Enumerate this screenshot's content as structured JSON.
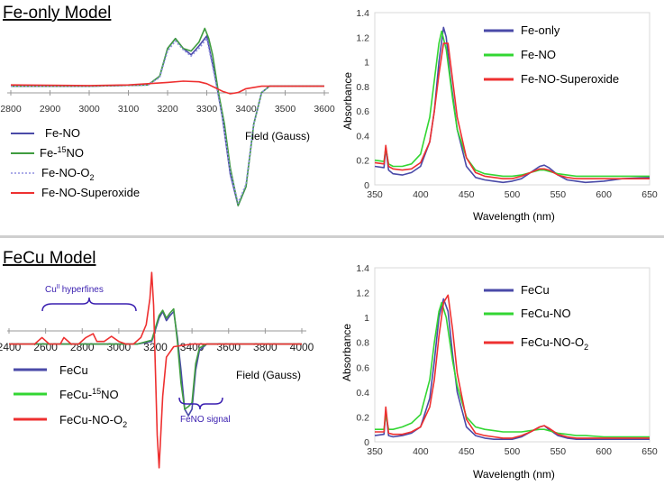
{
  "sections": {
    "top": {
      "title": "Fe-only Model"
    },
    "bottom": {
      "title": "FeCu Model"
    }
  },
  "colors": {
    "blue": "#4a4aa8",
    "green": "#3f9c3f",
    "bright_green": "#33d633",
    "red": "#ee3030",
    "dotted": "#8f8fe0",
    "annotation": "#3a1fb0"
  },
  "chart_data": [
    {
      "id": "epr_fe",
      "type": "line",
      "title": "",
      "xlabel": "Field (Gauss)",
      "ylabel": "",
      "xlim": [
        2800,
        3600
      ],
      "ylim": [
        -1.0,
        0.6
      ],
      "xticks": [
        2800,
        2900,
        3000,
        3100,
        3200,
        3300,
        3400,
        3500,
        3600
      ],
      "legend": [
        "Fe-NO",
        "Fe-",
        "15",
        "NO",
        "Fe-NO-O",
        "2",
        "Fe-NO-Superoxide"
      ],
      "series": [
        {
          "name": "Fe-NO",
          "color": "#4a4aa8",
          "style": "solid",
          "x": [
            2800,
            3000,
            3150,
            3180,
            3200,
            3220,
            3240,
            3260,
            3280,
            3300,
            3320,
            3340,
            3360,
            3380,
            3400,
            3420,
            3440,
            3460,
            3500,
            3600
          ],
          "y": [
            0,
            0,
            0.01,
            0.08,
            0.3,
            0.38,
            0.3,
            0.25,
            0.32,
            0.4,
            0.1,
            -0.25,
            -0.7,
            -0.95,
            -0.8,
            -0.3,
            -0.05,
            0,
            0,
            0
          ]
        },
        {
          "name": "Fe-15NO",
          "color": "#3f9c3f",
          "style": "solid",
          "x": [
            2800,
            3000,
            3150,
            3180,
            3200,
            3220,
            3240,
            3260,
            3280,
            3295,
            3305,
            3315,
            3330,
            3345,
            3360,
            3380,
            3400,
            3420,
            3440,
            3460,
            3500,
            3600
          ],
          "y": [
            0,
            0,
            0.01,
            0.08,
            0.3,
            0.38,
            0.3,
            0.28,
            0.35,
            0.46,
            0.38,
            0.25,
            -0.05,
            -0.3,
            -0.65,
            -0.95,
            -0.8,
            -0.3,
            -0.05,
            0,
            0,
            0
          ]
        },
        {
          "name": "Fe-NO-O2",
          "color": "#8f8fe0",
          "style": "dotted",
          "x": [
            2800,
            3000,
            3150,
            3180,
            3200,
            3220,
            3240,
            3260,
            3280,
            3300,
            3320,
            3340,
            3360,
            3380,
            3400,
            3420,
            3440,
            3460,
            3500,
            3600
          ],
          "y": [
            0,
            0,
            0.01,
            0.07,
            0.28,
            0.36,
            0.29,
            0.24,
            0.3,
            0.38,
            0.08,
            -0.25,
            -0.68,
            -0.93,
            -0.78,
            -0.3,
            -0.05,
            0,
            0,
            0
          ]
        },
        {
          "name": "Fe-NO-Superoxide",
          "color": "#ee3030",
          "style": "solid",
          "x": [
            2800,
            3000,
            3100,
            3150,
            3200,
            3240,
            3280,
            3300,
            3320,
            3340,
            3360,
            3380,
            3400,
            3440,
            3500,
            3600
          ],
          "y": [
            0.01,
            0.005,
            0.01,
            0.02,
            0.03,
            0.04,
            0.035,
            0.02,
            -0.01,
            -0.04,
            -0.06,
            -0.05,
            -0.02,
            0,
            0,
            0
          ]
        }
      ]
    },
    {
      "id": "uv_fe",
      "type": "line",
      "title": "",
      "xlabel": "Wavelength (nm)",
      "ylabel": "Absorbance",
      "xlim": [
        350,
        650
      ],
      "ylim": [
        0,
        1.4
      ],
      "xticks": [
        350,
        400,
        450,
        500,
        550,
        600,
        650
      ],
      "yticks": [
        "0",
        "0.2",
        "0.4",
        "0.6",
        "0.8",
        "1",
        "1.2",
        "1.4"
      ],
      "legend": [
        "Fe-only",
        "Fe-NO",
        "Fe-NO-Superoxide"
      ],
      "series": [
        {
          "name": "Fe-only",
          "color": "#4a4aa8",
          "x": [
            350,
            360,
            362,
            365,
            370,
            380,
            390,
            400,
            410,
            415,
            420,
            425,
            428,
            432,
            440,
            450,
            460,
            470,
            480,
            490,
            500,
            510,
            520,
            530,
            535,
            540,
            550,
            560,
            570,
            580,
            600,
            620,
            650
          ],
          "y": [
            0.15,
            0.14,
            0.3,
            0.12,
            0.09,
            0.08,
            0.1,
            0.15,
            0.35,
            0.6,
            1.0,
            1.28,
            1.2,
            0.9,
            0.45,
            0.15,
            0.06,
            0.04,
            0.03,
            0.02,
            0.03,
            0.05,
            0.1,
            0.15,
            0.16,
            0.14,
            0.08,
            0.04,
            0.03,
            0.02,
            0.03,
            0.05,
            0.06
          ]
        },
        {
          "name": "Fe-NO",
          "color": "#33d633",
          "x": [
            350,
            360,
            362,
            365,
            370,
            380,
            390,
            400,
            410,
            415,
            420,
            423,
            428,
            435,
            440,
            450,
            460,
            470,
            480,
            490,
            500,
            510,
            520,
            530,
            535,
            540,
            550,
            560,
            570,
            580,
            600,
            620,
            650
          ],
          "y": [
            0.2,
            0.19,
            0.3,
            0.17,
            0.15,
            0.15,
            0.17,
            0.25,
            0.55,
            0.85,
            1.15,
            1.25,
            1.1,
            0.7,
            0.45,
            0.22,
            0.12,
            0.09,
            0.08,
            0.07,
            0.07,
            0.08,
            0.1,
            0.12,
            0.12,
            0.11,
            0.09,
            0.08,
            0.07,
            0.07,
            0.07,
            0.07,
            0.07
          ]
        },
        {
          "name": "Fe-NO-Superoxide",
          "color": "#ee3030",
          "x": [
            350,
            360,
            362,
            365,
            370,
            380,
            390,
            400,
            410,
            415,
            420,
            425,
            430,
            435,
            440,
            450,
            460,
            470,
            480,
            490,
            500,
            510,
            520,
            530,
            535,
            540,
            550,
            560,
            570,
            580,
            600,
            620,
            650
          ],
          "y": [
            0.18,
            0.17,
            0.32,
            0.15,
            0.13,
            0.12,
            0.13,
            0.18,
            0.35,
            0.6,
            0.9,
            1.15,
            1.15,
            0.85,
            0.55,
            0.22,
            0.1,
            0.07,
            0.06,
            0.05,
            0.05,
            0.07,
            0.1,
            0.13,
            0.13,
            0.12,
            0.08,
            0.06,
            0.05,
            0.05,
            0.05,
            0.05,
            0.05
          ]
        }
      ]
    },
    {
      "id": "epr_fecu",
      "type": "line",
      "title": "",
      "xlabel": "Field (Gauss)",
      "ylabel": "",
      "xlim": [
        2400,
        4000
      ],
      "ylim": [
        -1.0,
        0.6
      ],
      "xticks": [
        2400,
        2600,
        2800,
        3000,
        3200,
        3400,
        3600,
        3800,
        4000
      ],
      "legend": [
        "FeCu",
        "FeCu-",
        "15",
        "NO",
        "FeCu-NO-O",
        "2"
      ],
      "annotations": [
        "Cu",
        "II",
        "hyperfines",
        "FeNO signal"
      ],
      "series": [
        {
          "name": "FeCu",
          "color": "#4a4aa8",
          "x": [
            2400,
            3100,
            3180,
            3220,
            3240,
            3260,
            3280,
            3300,
            3320,
            3340,
            3360,
            3380,
            3400,
            3420,
            3440,
            3480,
            3600,
            4000
          ],
          "y": [
            0,
            0,
            0.02,
            0.2,
            0.25,
            0.18,
            0.22,
            0.25,
            0.05,
            -0.2,
            -0.5,
            -0.55,
            -0.5,
            -0.2,
            -0.05,
            0,
            0,
            0
          ]
        },
        {
          "name": "FeCu-15NO",
          "color": "#3f9c3f",
          "x": [
            2400,
            3100,
            3180,
            3220,
            3240,
            3260,
            3280,
            3300,
            3320,
            3340,
            3360,
            3380,
            3400,
            3420,
            3440,
            3480,
            3600,
            4000
          ],
          "y": [
            0,
            0,
            0.03,
            0.22,
            0.26,
            0.2,
            0.24,
            0.27,
            0.02,
            -0.3,
            -0.5,
            -0.48,
            -0.45,
            -0.15,
            -0.03,
            0,
            0,
            0
          ]
        },
        {
          "name": "FeCu-NO-O2",
          "color": "#ee3030",
          "x": [
            2400,
            2540,
            2580,
            2620,
            2680,
            2700,
            2740,
            2780,
            2820,
            2860,
            2880,
            2920,
            2960,
            3000,
            3040,
            3080,
            3120,
            3150,
            3170,
            3180,
            3190,
            3200,
            3210,
            3220,
            3240,
            3260,
            3300,
            3400,
            3600,
            4000
          ],
          "y": [
            0,
            0,
            0.05,
            0,
            0,
            0.05,
            0,
            0,
            0.05,
            0.08,
            0.02,
            0.02,
            0.06,
            0.02,
            0,
            0,
            0.05,
            0.15,
            0.35,
            0.55,
            0.3,
            -0.2,
            -0.7,
            -0.95,
            -0.4,
            -0.1,
            -0.02,
            0,
            0,
            0
          ]
        }
      ]
    },
    {
      "id": "uv_fecu",
      "type": "line",
      "title": "",
      "xlabel": "Wavelength (nm)",
      "ylabel": "Absorbance",
      "xlim": [
        350,
        650
      ],
      "ylim": [
        0,
        1.4
      ],
      "xticks": [
        350,
        400,
        450,
        500,
        550,
        600,
        650
      ],
      "yticks": [
        "0",
        "0.2",
        "0.4",
        "0.6",
        "0.8",
        "1",
        "1.2",
        "1.4"
      ],
      "legend": [
        "FeCu",
        "FeCu-NO",
        "FeCu-NO-O",
        "2"
      ],
      "series": [
        {
          "name": "FeCu",
          "color": "#4a4aa8",
          "x": [
            350,
            360,
            362,
            365,
            370,
            380,
            390,
            400,
            410,
            415,
            420,
            425,
            430,
            435,
            440,
            450,
            460,
            470,
            480,
            490,
            500,
            510,
            520,
            530,
            535,
            540,
            550,
            560,
            570,
            580,
            600,
            620,
            650
          ],
          "y": [
            0.05,
            0.06,
            0.25,
            0.05,
            0.04,
            0.05,
            0.07,
            0.12,
            0.35,
            0.65,
            1.0,
            1.15,
            1.05,
            0.7,
            0.4,
            0.12,
            0.05,
            0.03,
            0.02,
            0.02,
            0.02,
            0.04,
            0.08,
            0.12,
            0.13,
            0.1,
            0.05,
            0.03,
            0.02,
            0.02,
            0.02,
            0.02,
            0.02
          ]
        },
        {
          "name": "FeCu-NO",
          "color": "#33d633",
          "x": [
            350,
            360,
            362,
            365,
            370,
            380,
            390,
            400,
            410,
            415,
            420,
            423,
            428,
            435,
            440,
            450,
            460,
            470,
            480,
            490,
            500,
            510,
            520,
            530,
            535,
            540,
            550,
            560,
            570,
            580,
            600,
            620,
            650
          ],
          "y": [
            0.1,
            0.1,
            0.22,
            0.1,
            0.1,
            0.12,
            0.15,
            0.22,
            0.5,
            0.8,
            1.05,
            1.12,
            1.0,
            0.65,
            0.45,
            0.2,
            0.12,
            0.1,
            0.09,
            0.08,
            0.08,
            0.08,
            0.09,
            0.1,
            0.1,
            0.09,
            0.07,
            0.06,
            0.05,
            0.05,
            0.04,
            0.04,
            0.04
          ]
        },
        {
          "name": "FeCu-NO-O2",
          "color": "#ee3030",
          "x": [
            350,
            360,
            362,
            365,
            370,
            380,
            390,
            400,
            410,
            415,
            420,
            425,
            430,
            435,
            440,
            450,
            460,
            470,
            480,
            490,
            500,
            510,
            520,
            530,
            535,
            540,
            550,
            560,
            570,
            580,
            600,
            620,
            650
          ],
          "y": [
            0.08,
            0.08,
            0.28,
            0.07,
            0.06,
            0.06,
            0.08,
            0.12,
            0.28,
            0.5,
            0.85,
            1.12,
            1.18,
            0.9,
            0.55,
            0.18,
            0.07,
            0.05,
            0.04,
            0.03,
            0.03,
            0.05,
            0.08,
            0.12,
            0.13,
            0.11,
            0.06,
            0.04,
            0.03,
            0.03,
            0.03,
            0.03,
            0.03
          ]
        }
      ]
    }
  ]
}
